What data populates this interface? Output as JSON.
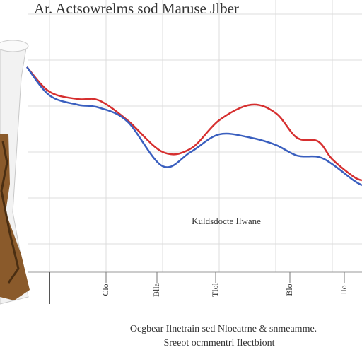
{
  "chart_data": {
    "type": "line",
    "title": "Ar. Actsowrelms sod Maruse Jlber",
    "annotation": "Kuldsdocte Ilwane",
    "x_tick_labels": [
      "Clo",
      "Blla",
      "Tlol",
      "Blo",
      "Ilo"
    ],
    "caption": [
      "Ocgbear Ilnetrain sed Nloeatrne & snmeamme.",
      "Sreeot ocmmentri Ilectbiont"
    ],
    "x": [
      0,
      6.8,
      15.2,
      21.5,
      30,
      40.5,
      48.9,
      57.4,
      66.9,
      74.3,
      80.6,
      86.9,
      91.1,
      97.5,
      100
    ],
    "xlim": [
      0,
      100
    ],
    "ylim": [
      0,
      100
    ],
    "grid": true,
    "series": [
      {
        "color": "#d62f2f",
        "values": [
          79.5,
          69.9,
          67.1,
          66.6,
          58.9,
          46.6,
          47.9,
          58.9,
          64.9,
          61.6,
          52.1,
          50.7,
          43.8,
          37.0,
          35.6
        ]
      },
      {
        "color": "#3a5fbf",
        "values": [
          79.5,
          68.5,
          64.9,
          63.8,
          58.4,
          41.1,
          46.6,
          53.4,
          52.1,
          49.3,
          45.2,
          44.7,
          41.9,
          35.6,
          33.7
        ]
      }
    ]
  }
}
